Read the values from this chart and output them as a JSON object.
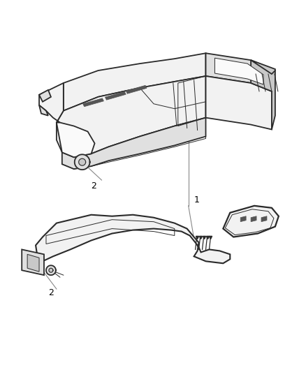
{
  "background_color": "#ffffff",
  "line_color": "#2a2a2a",
  "label_color": "#000000",
  "figsize": [
    4.38,
    5.33
  ],
  "dpi": 100,
  "lw_main": 1.3,
  "lw_thin": 0.7,
  "face_light": "#f2f2f2",
  "face_mid": "#e0e0e0",
  "face_dark": "#c8c8c8",
  "face_white": "#fafafa",
  "slot_color": "#555555"
}
